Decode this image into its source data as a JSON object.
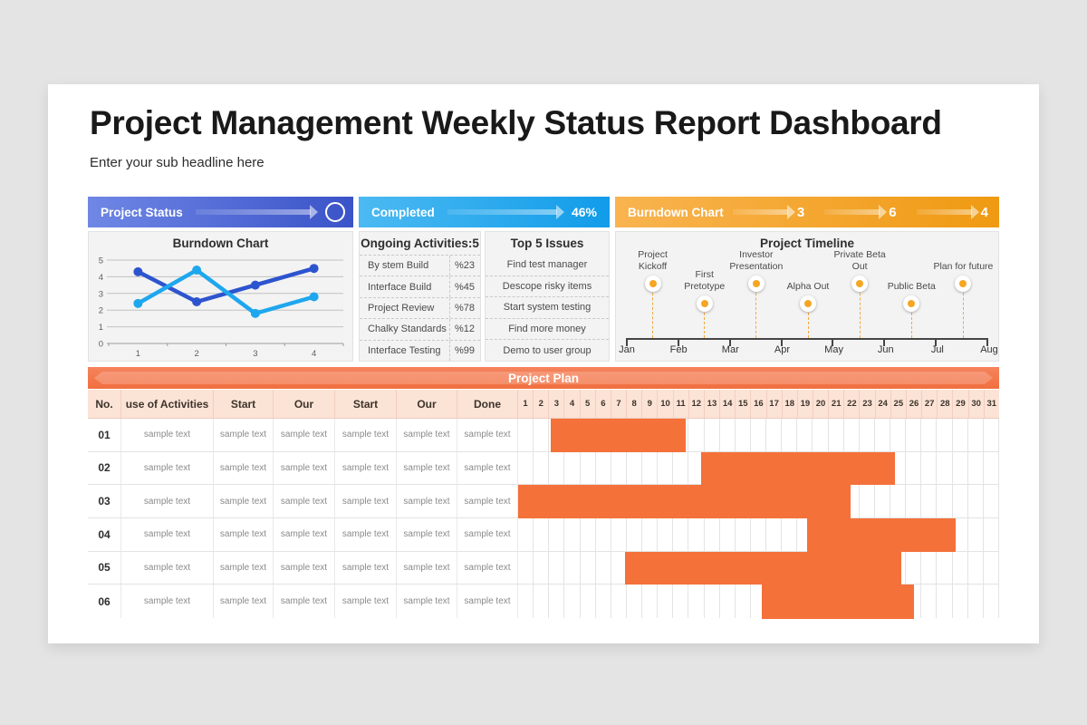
{
  "page": {
    "title": "Project Management Weekly Status Report Dashboard",
    "subtitle": "Enter your sub headline here"
  },
  "header_bars": {
    "project_status": {
      "label": "Project Status",
      "gradient": [
        "#6f87e5",
        "#3a53c8"
      ]
    },
    "completed": {
      "label": "Completed",
      "value": "46%",
      "gradient": [
        "#4cbaf2",
        "#119ce9"
      ]
    },
    "burndown": {
      "label": "Burndown Chart",
      "values": [
        "3",
        "6",
        "4"
      ],
      "gradient": [
        "#f9b450",
        "#ef9a12"
      ]
    }
  },
  "ongoing_panel": {
    "title": "Ongoing Activities:5",
    "items": [
      {
        "label": "By stem Build",
        "value": "%23"
      },
      {
        "label": "Interface Build",
        "value": "%45"
      },
      {
        "label": "Project Review",
        "value": "%78"
      },
      {
        "label": "Chalky Standards",
        "value": "%12"
      },
      {
        "label": "Interface Testing",
        "value": "%99"
      }
    ]
  },
  "issues_panel": {
    "title": "Top 5 Issues",
    "items": [
      "Find test manager",
      "Descope risky items",
      "Start system testing",
      "Find more money",
      "Demo to user group"
    ]
  },
  "chart_data": [
    {
      "id": "burndown-line",
      "type": "line",
      "title": "Burndown Chart",
      "x": [
        1,
        2,
        3,
        4
      ],
      "series": [
        {
          "name": "series-1",
          "color": "#2d54cf",
          "values": [
            4.3,
            2.5,
            3.5,
            4.5
          ]
        },
        {
          "name": "series-2",
          "color": "#1ea7ee",
          "values": [
            2.4,
            4.4,
            1.8,
            2.8
          ]
        }
      ],
      "ylim": [
        0,
        5
      ],
      "yticks": [
        0,
        1,
        2,
        3,
        4,
        5
      ],
      "grid": true,
      "legend": "none"
    },
    {
      "id": "project-timeline",
      "type": "scatter",
      "title": "Project Timeline",
      "months": [
        "Jan",
        "Feb",
        "Mar",
        "Apr",
        "May",
        "Jun",
        "Jul",
        "Aug"
      ],
      "dot_color": "#f5a623",
      "milestones": [
        {
          "label": "Project Kickoff",
          "position": 0.5,
          "level": "high"
        },
        {
          "label": "First Pretotype",
          "position": 1.5,
          "level": "low"
        },
        {
          "label": "Investor Presentation",
          "position": 2.5,
          "level": "high"
        },
        {
          "label": "Alpha Out",
          "position": 3.5,
          "level": "low"
        },
        {
          "label": "Private Beta Out",
          "position": 4.5,
          "level": "high"
        },
        {
          "label": "Public Beta",
          "position": 5.5,
          "level": "low"
        },
        {
          "label": "Plan for future",
          "position": 6.5,
          "level": "high"
        }
      ]
    },
    {
      "id": "project-plan-gantt",
      "type": "table",
      "title": "Project Plan",
      "columns": [
        "No.",
        "use of Activities",
        "Start",
        "Our",
        "Start",
        "Our",
        "Done"
      ],
      "day_count": 31,
      "bar_color": "#f4713a",
      "rows": [
        {
          "no": "01",
          "cells": [
            "sample text",
            "sample text",
            "sample text",
            "sample text",
            "sample text",
            "sample text"
          ],
          "bar": {
            "start_day": 3.1,
            "end_day": 11.8
          }
        },
        {
          "no": "02",
          "cells": [
            "sample text",
            "sample text",
            "sample text",
            "sample text",
            "sample text",
            "sample text"
          ],
          "bar": {
            "start_day": 12.8,
            "end_day": 25.3
          }
        },
        {
          "no": "03",
          "cells": [
            "sample text",
            "sample text",
            "sample text",
            "sample text",
            "sample text",
            "sample text"
          ],
          "bar": {
            "start_day": 1.0,
            "end_day": 22.4
          }
        },
        {
          "no": "04",
          "cells": [
            "sample text",
            "sample text",
            "sample text",
            "sample text",
            "sample text",
            "sample text"
          ],
          "bar": {
            "start_day": 19.6,
            "end_day": 29.2
          }
        },
        {
          "no": "05",
          "cells": [
            "sample text",
            "sample text",
            "sample text",
            "sample text",
            "sample text",
            "sample text"
          ],
          "bar": {
            "start_day": 7.9,
            "end_day": 25.7
          }
        },
        {
          "no": "06",
          "cells": [
            "sample text",
            "sample text",
            "sample text",
            "sample text",
            "sample text",
            "sample text"
          ],
          "bar": {
            "start_day": 16.7,
            "end_day": 26.5
          }
        }
      ]
    }
  ]
}
